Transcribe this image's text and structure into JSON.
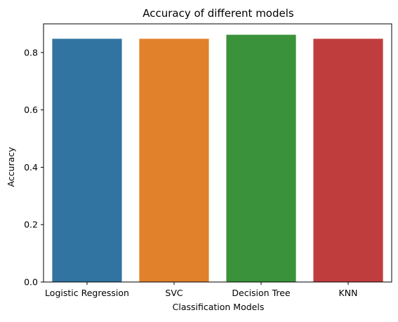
{
  "chart_data": {
    "type": "bar",
    "title": "Accuracy of different models",
    "xlabel": "Classification Models",
    "ylabel": "Accuracy",
    "categories": [
      "Logistic Regression",
      "SVC",
      "Decision Tree",
      "KNN"
    ],
    "values": [
      0.848,
      0.848,
      0.862,
      0.848
    ],
    "colors": [
      "#3274a1",
      "#e1812c",
      "#3a923a",
      "#c03d3e"
    ],
    "ylim": [
      0,
      0.9
    ],
    "yticks": [
      0.0,
      0.2,
      0.4,
      0.6,
      0.8
    ],
    "ytick_labels": [
      "0.0",
      "0.2",
      "0.4",
      "0.6",
      "0.8"
    ],
    "grid": false,
    "legend": "none"
  }
}
